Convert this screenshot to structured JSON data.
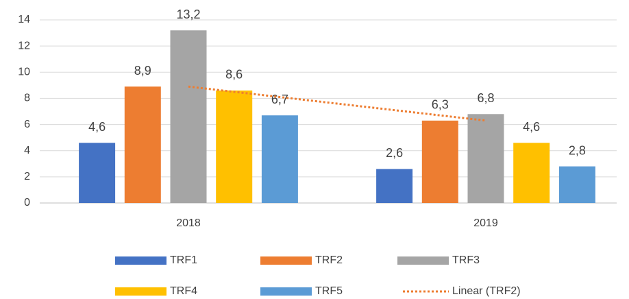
{
  "chart_data": {
    "type": "bar",
    "categories": [
      "2018",
      "2019"
    ],
    "series": [
      {
        "name": "TRF1",
        "color": "#4472c4",
        "values": [
          4.6,
          2.6
        ],
        "value_labels": [
          "4,6",
          "2,6"
        ]
      },
      {
        "name": "TRF2",
        "color": "#ed7d31",
        "values": [
          8.9,
          6.3
        ],
        "value_labels": [
          "8,9",
          "6,3"
        ]
      },
      {
        "name": "TRF3",
        "color": "#a5a5a5",
        "values": [
          13.2,
          6.8
        ],
        "value_labels": [
          "13,2",
          "6,8"
        ]
      },
      {
        "name": "TRF4",
        "color": "#ffc000",
        "values": [
          8.6,
          4.6
        ],
        "value_labels": [
          "8,6",
          "4,6"
        ]
      },
      {
        "name": "TRF5",
        "color": "#5b9bd5",
        "values": [
          6.7,
          2.8
        ],
        "value_labels": [
          "6,7",
          "2,8"
        ]
      }
    ],
    "trendline": {
      "name": "Linear (TRF2)",
      "of": "TRF2",
      "color": "#ed7d31"
    },
    "ylim": [
      0,
      14
    ],
    "yticks": [
      0,
      2,
      4,
      6,
      8,
      10,
      12,
      14
    ],
    "grid": true,
    "legend": "bottom"
  }
}
